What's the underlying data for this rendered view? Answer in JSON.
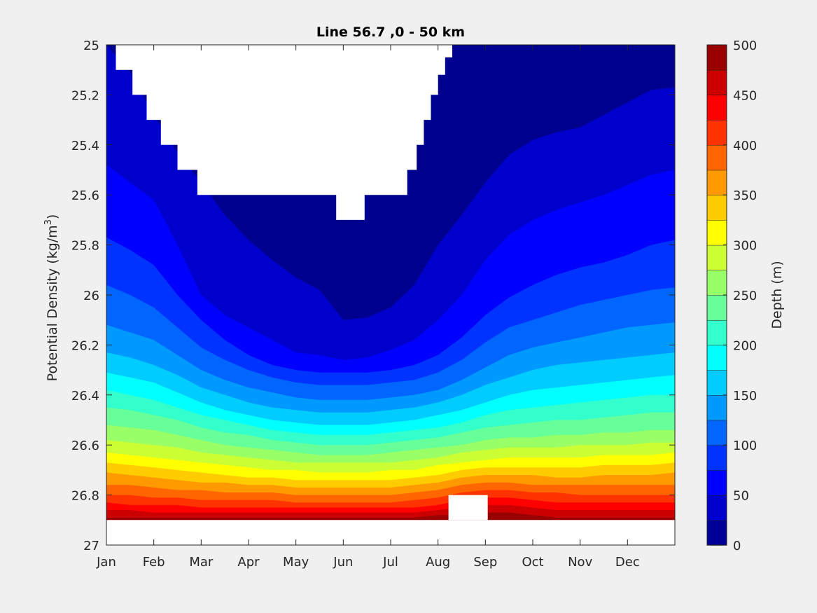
{
  "chart_data": {
    "type": "heatmap",
    "subtype": "filled-contour",
    "title": "Line 56.7 ,0 - 50 km",
    "xlabel": "",
    "ylabel_main": "Potential Density (kg/m",
    "ylabel_sup": "3",
    "ylabel_close": ")",
    "x_ticks": [
      "Jan",
      "Feb",
      "Mar",
      "Apr",
      "May",
      "Jun",
      "Jul",
      "Aug",
      "Sep",
      "Oct",
      "Nov",
      "Dec"
    ],
    "xlim": [
      1,
      13
    ],
    "y_ticks": [
      "25",
      "25.2",
      "25.4",
      "25.6",
      "25.8",
      "26",
      "26.2",
      "26.4",
      "26.6",
      "26.8",
      "27"
    ],
    "ylim": [
      25,
      27
    ],
    "y_reversed": true,
    "colorbar": {
      "label": "Depth (m)",
      "ticks": [
        "0",
        "50",
        "100",
        "150",
        "200",
        "250",
        "300",
        "350",
        "400",
        "450",
        "500"
      ],
      "range": [
        0,
        500
      ],
      "levels": [
        0,
        25,
        50,
        75,
        100,
        125,
        150,
        175,
        200,
        225,
        250,
        275,
        300,
        325,
        350,
        375,
        400,
        425,
        450,
        475,
        500
      ],
      "colormap": "jet"
    },
    "contour_boundaries": {
      "x_months": [
        1,
        1.5,
        2,
        2.5,
        3,
        3.5,
        4,
        4.5,
        5,
        5.5,
        6,
        6.5,
        7,
        7.5,
        8,
        8.5,
        9,
        9.5,
        10,
        10.5,
        11,
        11.5,
        12,
        12.5,
        13
      ],
      "levels": [
        {
          "depth": 25,
          "sigma": [
            25.0,
            25.11,
            25.28,
            25.43,
            25.55,
            25.68,
            25.78,
            25.86,
            25.93,
            25.98,
            26.1,
            26.09,
            26.05,
            25.96,
            25.8,
            25.68,
            25.55,
            25.44,
            25.38,
            25.35,
            25.33,
            25.28,
            25.23,
            25.18,
            25.17
          ]
        },
        {
          "depth": 50,
          "sigma": [
            25.48,
            25.55,
            25.62,
            25.8,
            26.0,
            26.08,
            26.13,
            26.18,
            26.23,
            26.24,
            26.26,
            26.25,
            26.22,
            26.18,
            26.1,
            26.0,
            25.86,
            25.76,
            25.7,
            25.66,
            25.63,
            25.6,
            25.56,
            25.52,
            25.5
          ]
        },
        {
          "depth": 75,
          "sigma": [
            25.77,
            25.82,
            25.88,
            26.0,
            26.1,
            26.18,
            26.24,
            26.28,
            26.3,
            26.31,
            26.31,
            26.31,
            26.3,
            26.28,
            26.24,
            26.17,
            26.08,
            26.01,
            25.96,
            25.92,
            25.89,
            25.87,
            25.84,
            25.8,
            25.78
          ]
        },
        {
          "depth": 100,
          "sigma": [
            25.96,
            26.0,
            26.05,
            26.13,
            26.21,
            26.26,
            26.3,
            26.33,
            26.35,
            26.36,
            26.36,
            26.36,
            26.35,
            26.34,
            26.31,
            26.26,
            26.19,
            26.13,
            26.1,
            26.07,
            26.04,
            26.02,
            26.0,
            25.98,
            25.97
          ]
        },
        {
          "depth": 125,
          "sigma": [
            26.12,
            26.15,
            26.18,
            26.24,
            26.3,
            26.34,
            26.37,
            26.39,
            26.41,
            26.42,
            26.42,
            26.42,
            26.41,
            26.4,
            26.38,
            26.34,
            26.29,
            26.24,
            26.21,
            26.19,
            26.17,
            26.15,
            26.13,
            26.12,
            26.11
          ]
        },
        {
          "depth": 150,
          "sigma": [
            26.23,
            26.25,
            26.28,
            26.32,
            26.37,
            26.4,
            26.43,
            26.45,
            26.46,
            26.47,
            26.47,
            26.47,
            26.46,
            26.45,
            26.43,
            26.4,
            26.36,
            26.33,
            26.3,
            26.28,
            26.27,
            26.26,
            26.25,
            26.24,
            26.23
          ]
        },
        {
          "depth": 175,
          "sigma": [
            26.31,
            26.33,
            26.35,
            26.39,
            26.43,
            26.46,
            26.48,
            26.5,
            26.51,
            26.52,
            26.52,
            26.52,
            26.51,
            26.5,
            26.48,
            26.46,
            26.43,
            26.4,
            26.38,
            26.37,
            26.36,
            26.35,
            26.34,
            26.33,
            26.32
          ]
        },
        {
          "depth": 200,
          "sigma": [
            26.38,
            26.4,
            26.42,
            26.45,
            26.48,
            26.5,
            26.52,
            26.54,
            26.55,
            26.56,
            26.56,
            26.56,
            26.55,
            26.54,
            26.53,
            26.51,
            26.48,
            26.46,
            26.45,
            26.44,
            26.43,
            26.42,
            26.41,
            26.4,
            26.4
          ]
        },
        {
          "depth": 225,
          "sigma": [
            26.45,
            26.46,
            26.48,
            26.5,
            26.53,
            26.55,
            26.56,
            26.58,
            26.59,
            26.6,
            26.6,
            26.6,
            26.59,
            26.58,
            26.57,
            26.55,
            26.53,
            26.52,
            26.51,
            26.5,
            26.5,
            26.49,
            26.48,
            26.47,
            26.47
          ]
        },
        {
          "depth": 250,
          "sigma": [
            26.52,
            26.53,
            26.54,
            26.56,
            26.58,
            26.6,
            26.61,
            26.62,
            26.63,
            26.64,
            26.64,
            26.64,
            26.63,
            26.62,
            26.61,
            26.6,
            26.58,
            26.57,
            26.57,
            26.56,
            26.56,
            26.55,
            26.55,
            26.54,
            26.54
          ]
        },
        {
          "depth": 275,
          "sigma": [
            26.58,
            26.59,
            26.6,
            26.61,
            26.63,
            26.64,
            26.65,
            26.66,
            26.67,
            26.67,
            26.67,
            26.67,
            26.67,
            26.66,
            26.65,
            26.63,
            26.62,
            26.61,
            26.61,
            26.61,
            26.6,
            26.6,
            26.6,
            26.59,
            26.59
          ]
        },
        {
          "depth": 300,
          "sigma": [
            26.63,
            26.64,
            26.65,
            26.66,
            26.67,
            26.68,
            26.69,
            26.7,
            26.7,
            26.71,
            26.71,
            26.71,
            26.7,
            26.7,
            26.68,
            26.67,
            26.66,
            26.65,
            26.65,
            26.65,
            26.65,
            26.64,
            26.64,
            26.64,
            26.63
          ]
        },
        {
          "depth": 325,
          "sigma": [
            26.67,
            26.68,
            26.69,
            26.7,
            26.71,
            26.72,
            26.73,
            26.73,
            26.74,
            26.74,
            26.74,
            26.74,
            26.74,
            26.73,
            26.72,
            26.7,
            26.69,
            26.69,
            26.69,
            26.69,
            26.69,
            26.68,
            26.68,
            26.68,
            26.67
          ]
        },
        {
          "depth": 350,
          "sigma": [
            26.71,
            26.72,
            26.73,
            26.74,
            26.75,
            26.75,
            26.76,
            26.76,
            26.77,
            26.77,
            26.77,
            26.77,
            26.77,
            26.76,
            26.75,
            26.73,
            26.72,
            26.72,
            26.72,
            26.73,
            26.73,
            26.72,
            26.72,
            26.72,
            26.71
          ]
        },
        {
          "depth": 375,
          "sigma": [
            26.76,
            26.76,
            26.77,
            26.78,
            26.78,
            26.79,
            26.79,
            26.79,
            26.8,
            26.8,
            26.8,
            26.8,
            26.8,
            26.79,
            26.78,
            26.76,
            26.75,
            26.75,
            26.76,
            26.76,
            26.76,
            26.76,
            26.76,
            26.76,
            26.76
          ]
        },
        {
          "depth": 400,
          "sigma": [
            26.8,
            26.8,
            26.81,
            26.81,
            26.82,
            26.82,
            26.82,
            26.82,
            26.83,
            26.83,
            26.83,
            26.83,
            26.83,
            26.82,
            26.81,
            26.79,
            26.78,
            26.78,
            26.79,
            26.79,
            26.8,
            26.8,
            26.8,
            26.8,
            26.8
          ]
        },
        {
          "depth": 425,
          "sigma": [
            26.83,
            26.84,
            26.84,
            26.84,
            26.85,
            26.85,
            26.85,
            26.85,
            26.85,
            26.85,
            26.85,
            26.85,
            26.85,
            26.85,
            26.84,
            26.82,
            26.81,
            26.81,
            26.82,
            26.83,
            26.83,
            26.83,
            26.83,
            26.83,
            26.83
          ]
        },
        {
          "depth": 450,
          "sigma": [
            26.86,
            26.86,
            26.87,
            26.87,
            26.87,
            26.87,
            26.87,
            26.87,
            26.87,
            26.87,
            26.87,
            26.87,
            26.87,
            26.87,
            26.86,
            26.85,
            26.84,
            26.84,
            26.85,
            26.86,
            26.86,
            26.86,
            26.86,
            26.86,
            26.86
          ]
        },
        {
          "depth": 475,
          "sigma": [
            26.89,
            26.89,
            26.89,
            26.89,
            26.89,
            26.89,
            26.89,
            26.89,
            26.89,
            26.89,
            26.89,
            26.89,
            26.89,
            26.89,
            26.88,
            26.88,
            26.87,
            26.87,
            26.88,
            26.89,
            26.89,
            26.89,
            26.89,
            26.89,
            26.89
          ]
        }
      ],
      "no_data_below_sigma": 26.9
    },
    "no_data_regions": [
      {
        "name": "upper-gap",
        "outline": [
          [
            1.2,
            25.0
          ],
          [
            8.3,
            25.0
          ],
          [
            8.3,
            25.05
          ],
          [
            8.15,
            25.05
          ],
          [
            8.15,
            25.12
          ],
          [
            8.0,
            25.12
          ],
          [
            8.0,
            25.2
          ],
          [
            7.85,
            25.2
          ],
          [
            7.85,
            25.3
          ],
          [
            7.7,
            25.3
          ],
          [
            7.7,
            25.4
          ],
          [
            7.55,
            25.4
          ],
          [
            7.55,
            25.5
          ],
          [
            7.35,
            25.5
          ],
          [
            7.35,
            25.6
          ],
          [
            6.45,
            25.6
          ],
          [
            6.45,
            25.7
          ],
          [
            5.85,
            25.7
          ],
          [
            5.85,
            25.6
          ],
          [
            2.92,
            25.6
          ],
          [
            2.92,
            25.5
          ],
          [
            2.5,
            25.5
          ],
          [
            2.5,
            25.4
          ],
          [
            2.15,
            25.4
          ],
          [
            2.15,
            25.3
          ],
          [
            1.85,
            25.3
          ],
          [
            1.85,
            25.2
          ],
          [
            1.55,
            25.2
          ],
          [
            1.55,
            25.1
          ],
          [
            1.2,
            25.1
          ]
        ]
      },
      {
        "name": "aug-gap",
        "outline": [
          [
            8.22,
            26.8
          ],
          [
            9.05,
            26.8
          ],
          [
            9.05,
            26.9
          ],
          [
            8.22,
            26.9
          ]
        ]
      },
      {
        "name": "bottom-gap",
        "outline": [
          [
            1.0,
            26.9
          ],
          [
            13.0,
            26.9
          ],
          [
            13.0,
            27.0
          ],
          [
            1.0,
            27.0
          ]
        ]
      }
    ]
  }
}
